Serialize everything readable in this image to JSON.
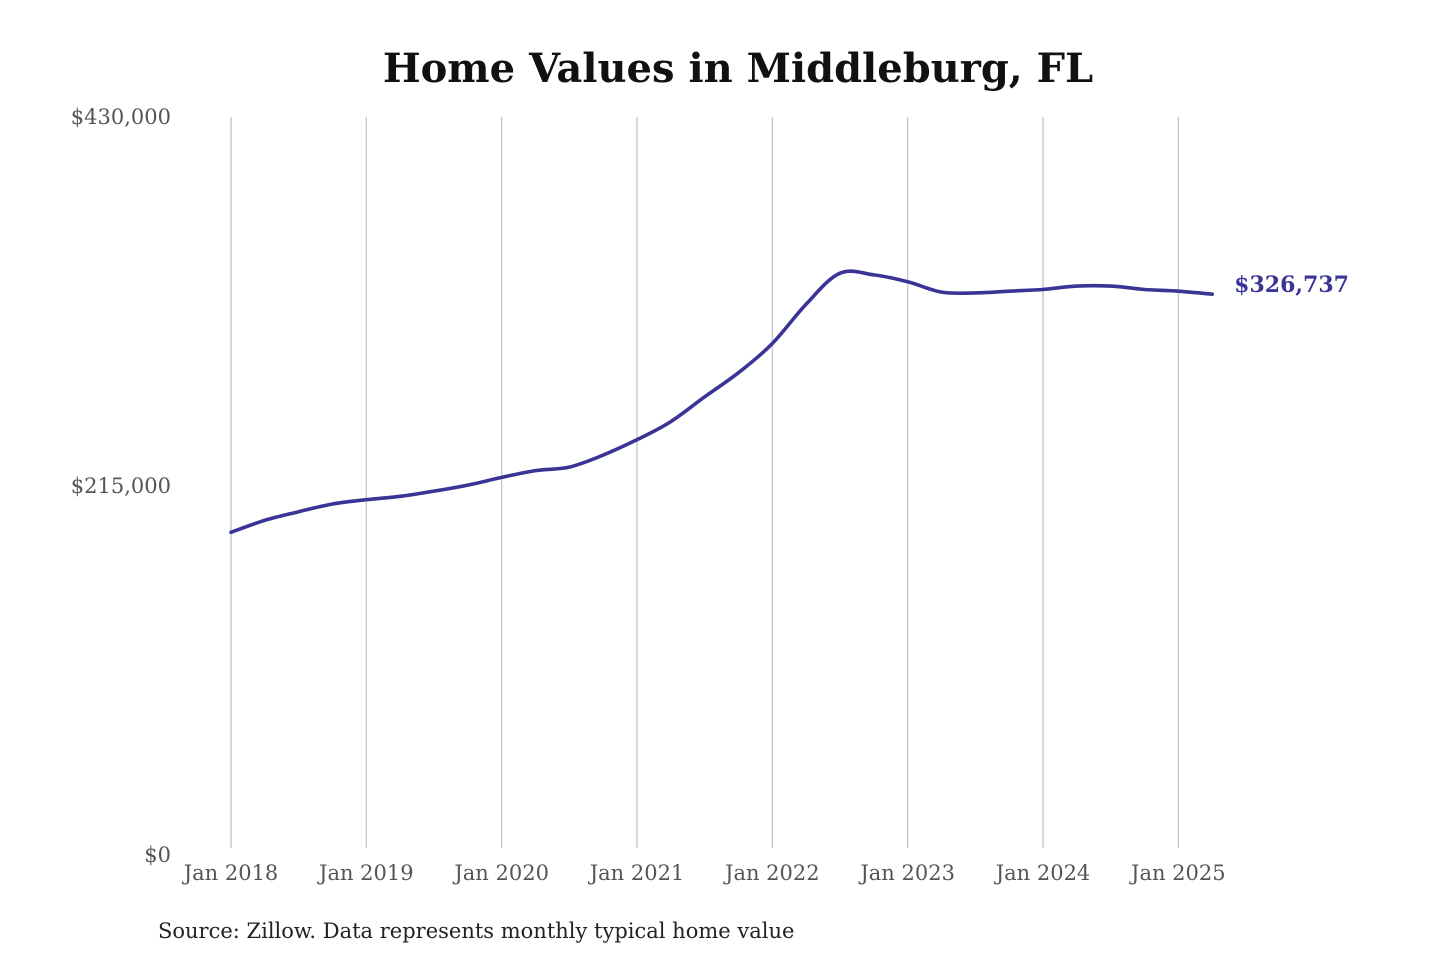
{
  "chart_data": {
    "type": "line",
    "title": "Home Values in Middleburg, FL",
    "source": "Source: Zillow. Data represents monthly typical home value",
    "ylim": [
      0,
      430000
    ],
    "yticks": [
      {
        "value": 0,
        "label": "$0"
      },
      {
        "value": 215000,
        "label": "$215,000"
      },
      {
        "value": 430000,
        "label": "$430,000"
      }
    ],
    "xticks": [
      {
        "date": "2018-01",
        "label": "Jan 2018"
      },
      {
        "date": "2019-01",
        "label": "Jan 2019"
      },
      {
        "date": "2020-01",
        "label": "Jan 2020"
      },
      {
        "date": "2021-01",
        "label": "Jan 2021"
      },
      {
        "date": "2022-01",
        "label": "Jan 2022"
      },
      {
        "date": "2023-01",
        "label": "Jan 2023"
      },
      {
        "date": "2024-01",
        "label": "Jan 2024"
      },
      {
        "date": "2025-01",
        "label": "Jan 2025"
      }
    ],
    "xlim": [
      "2018-01",
      "2025-07"
    ],
    "grid": {
      "vertical": true,
      "horizontal": false
    },
    "line_color": "#3a3497",
    "end_label": "$326,737",
    "series": [
      {
        "points": [
          {
            "date": "2018-01",
            "value": 188000
          },
          {
            "date": "2018-04",
            "value": 195000
          },
          {
            "date": "2018-07",
            "value": 200000
          },
          {
            "date": "2018-10",
            "value": 204500
          },
          {
            "date": "2019-01",
            "value": 207000
          },
          {
            "date": "2019-04",
            "value": 209000
          },
          {
            "date": "2019-07",
            "value": 212000
          },
          {
            "date": "2019-10",
            "value": 215500
          },
          {
            "date": "2020-01",
            "value": 220000
          },
          {
            "date": "2020-04",
            "value": 224000
          },
          {
            "date": "2020-07",
            "value": 226000
          },
          {
            "date": "2020-10",
            "value": 233000
          },
          {
            "date": "2021-01",
            "value": 242000
          },
          {
            "date": "2021-04",
            "value": 252500
          },
          {
            "date": "2021-07",
            "value": 267000
          },
          {
            "date": "2021-10",
            "value": 281000
          },
          {
            "date": "2022-01",
            "value": 298000
          },
          {
            "date": "2022-04",
            "value": 321000
          },
          {
            "date": "2022-07",
            "value": 339000
          },
          {
            "date": "2022-10",
            "value": 338000
          },
          {
            "date": "2023-01",
            "value": 334000
          },
          {
            "date": "2023-04",
            "value": 328000
          },
          {
            "date": "2023-07",
            "value": 327500
          },
          {
            "date": "2023-10",
            "value": 328500
          },
          {
            "date": "2024-01",
            "value": 329500
          },
          {
            "date": "2024-04",
            "value": 331500
          },
          {
            "date": "2024-07",
            "value": 331500
          },
          {
            "date": "2024-10",
            "value": 329500
          },
          {
            "date": "2025-01",
            "value": 328500
          },
          {
            "date": "2025-04",
            "value": 326737
          }
        ]
      }
    ]
  }
}
